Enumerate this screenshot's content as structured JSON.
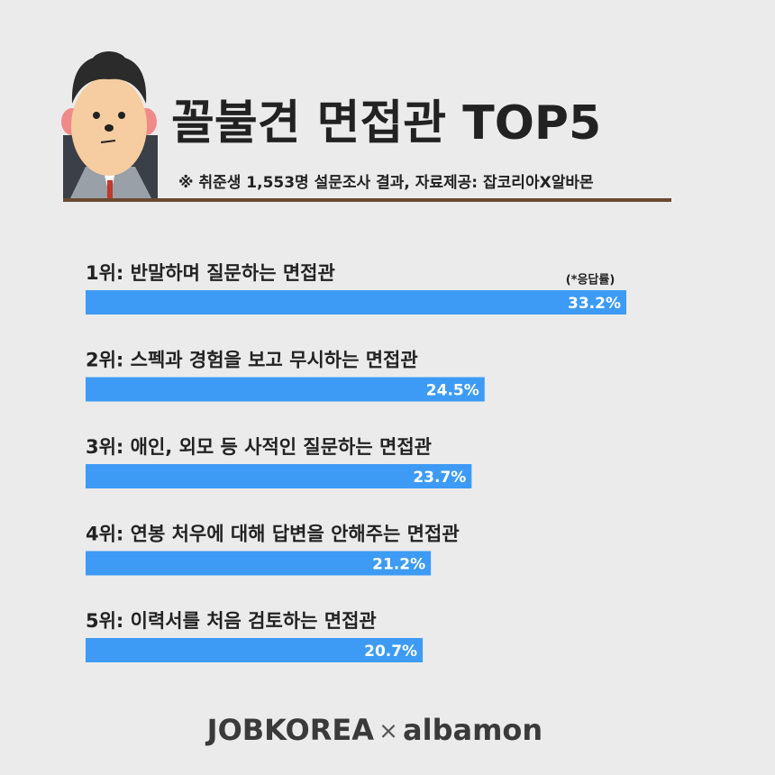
{
  "chart_data": {
    "type": "bar",
    "orientation": "horizontal",
    "title": "꼴불견 면접관 TOP5",
    "subtitle": "※ 취준생 1,553명 설문조사 결과,  자료제공: 잡코리아X알바몬",
    "unit_note": "(*응답률)",
    "categories": [
      "1위: 반말하며 질문하는 면접관",
      "2위: 스펙과 경험을 보고 무시하는 면접관",
      "3위: 애인, 외모 등 사적인 질문하는 면접관",
      "4위: 연봉 처우에 대해 답변을 안해주는 면접관",
      "5위: 이력서를 처음 검토하는 면접관"
    ],
    "values": [
      33.2,
      24.5,
      23.7,
      21.2,
      20.7
    ],
    "value_labels": [
      "33.2%",
      "24.5%",
      "23.7%",
      "21.2%",
      "20.7%"
    ],
    "color": "#3d9bf5",
    "footer": {
      "left": "JOBKOREA",
      "separator": "×",
      "right": "albamon"
    }
  }
}
